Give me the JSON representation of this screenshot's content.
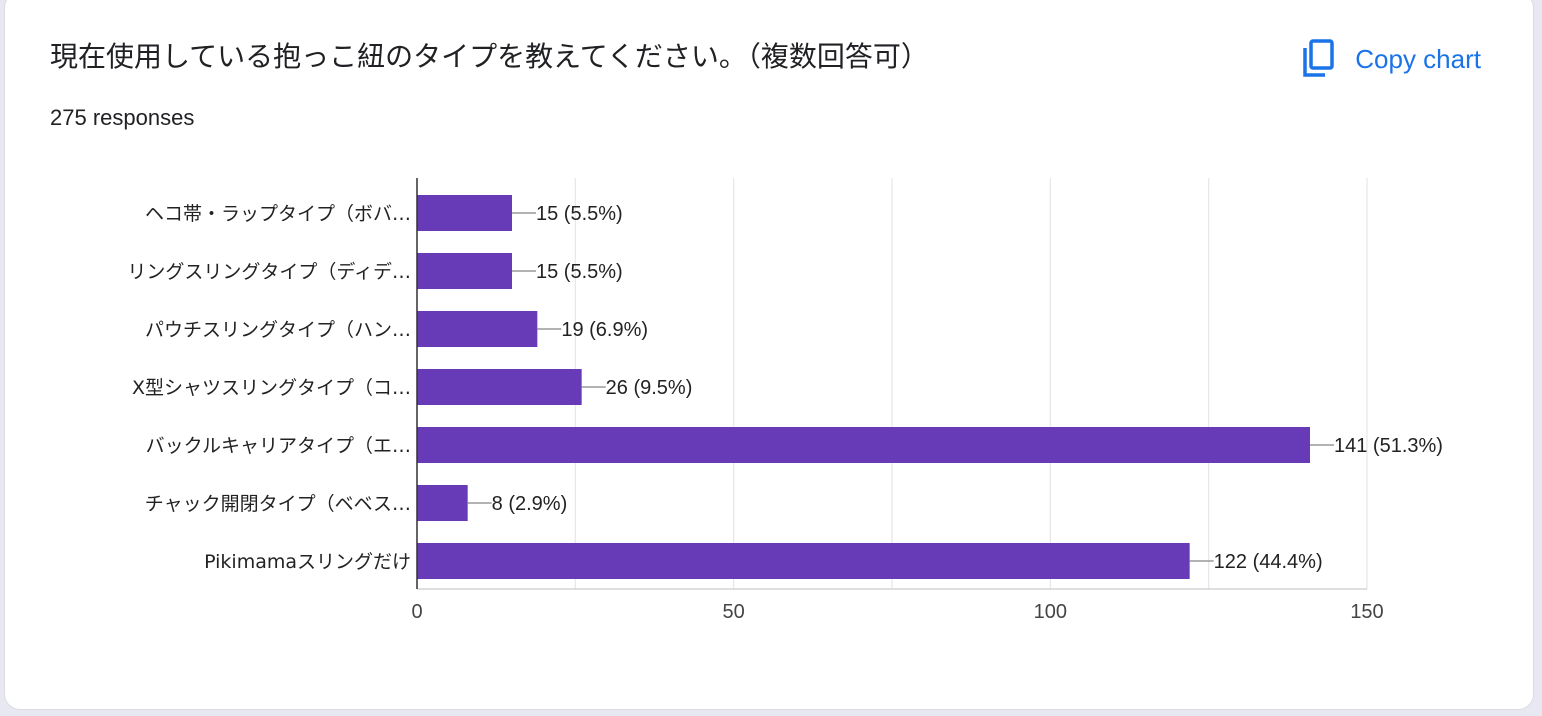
{
  "header": {
    "title": "現在使用している抱っこ紐のタイプを教えてください。（複数回答可）",
    "responses": "275 responses",
    "copy_label": "Copy chart",
    "copy_icon": "copy-icon"
  },
  "colors": {
    "bar": "#673ab7",
    "accent": "#1a73e8",
    "grid": "#e6e6e6"
  },
  "chart_data": {
    "type": "bar",
    "orientation": "horizontal",
    "categories": [
      "ヘコ帯・ラップタイプ（ボバ…",
      "リングスリングタイプ（ディデ…",
      "パウチスリングタイプ（ハン…",
      "X型シャツスリングタイプ（コ…",
      "バックルキャリアタイプ（エ…",
      "チャック開閉タイプ（ベベス…",
      "Pikimamaスリングだけ"
    ],
    "values": [
      15,
      15,
      19,
      26,
      141,
      8,
      122
    ],
    "value_labels": [
      "15 (5.5%)",
      "15 (5.5%)",
      "19 (6.9%)",
      "26 (9.5%)",
      "141 (51.3%)",
      "8 (2.9%)",
      "122 (44.4%)"
    ],
    "xlim": [
      0,
      150
    ],
    "xticks": [
      0,
      50,
      100,
      150
    ],
    "xtick_labels": [
      "0",
      "50",
      "100",
      "150"
    ],
    "grid": true
  }
}
